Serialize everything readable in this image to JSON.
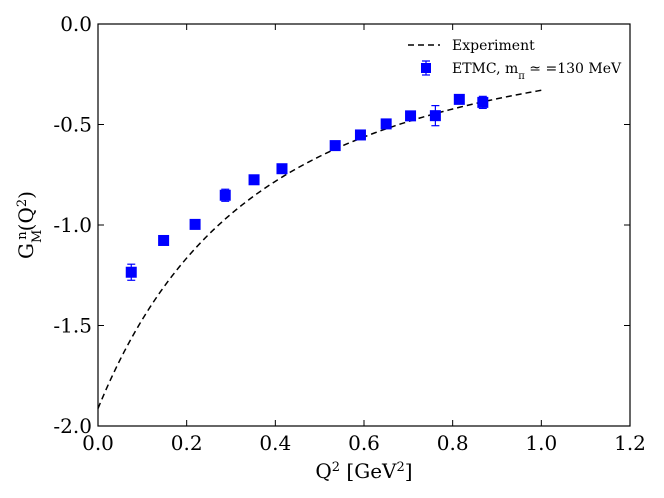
{
  "chart_data": {
    "type": "scatter",
    "title": "",
    "xlabel": {
      "main": "Q",
      "sup": "2",
      "mid": " [GeV",
      "sup2": "2",
      "end": "]"
    },
    "ylabel": {
      "main": "G",
      "sub": "M",
      "sup": "n",
      "end": "(Q",
      "sup2": "2",
      "close": ")"
    },
    "xlim": [
      0.0,
      1.2
    ],
    "ylim": [
      -2.0,
      0.0
    ],
    "xticks": [
      0.0,
      0.2,
      0.4,
      0.6,
      0.8,
      1.0,
      1.2
    ],
    "xtick_labels": [
      "0.0",
      "0.2",
      "0.4",
      "0.6",
      "0.8",
      "1.0",
      "1.2"
    ],
    "yticks": [
      0.0,
      -0.5,
      -1.0,
      -1.5,
      -2.0
    ],
    "ytick_labels": [
      "0.0",
      "-0.5",
      "-1.0",
      "-1.5",
      "-2.0"
    ],
    "legend": {
      "position": "top-right",
      "experiment_label": "Experiment",
      "etmc_label_main": "ETMC, m",
      "etmc_label_sub": "π",
      "etmc_label_rest": " ≃ =130 MeV"
    },
    "series": [
      {
        "name": "Experiment",
        "style": "dashed-line",
        "color": "#000000",
        "formula": "dipole: -1.913/(1+Q2/0.71)^2",
        "x_range": [
          0.0,
          1.0
        ]
      },
      {
        "name": "ETMC",
        "style": "square-markers-with-errorbars",
        "color": "#0000ff",
        "points": [
          {
            "x": 0.075,
            "y": -1.235,
            "err": 0.04
          },
          {
            "x": 0.148,
            "y": -1.077,
            "err": 0.02
          },
          {
            "x": 0.219,
            "y": -0.997,
            "err": 0.015
          },
          {
            "x": 0.287,
            "y": -0.852,
            "err": 0.03
          },
          {
            "x": 0.352,
            "y": -0.775,
            "err": 0.015
          },
          {
            "x": 0.415,
            "y": -0.72,
            "err": 0.015
          },
          {
            "x": 0.535,
            "y": -0.605,
            "err": 0.02
          },
          {
            "x": 0.592,
            "y": -0.552,
            "err": 0.015
          },
          {
            "x": 0.65,
            "y": -0.497,
            "err": 0.02
          },
          {
            "x": 0.705,
            "y": -0.457,
            "err": 0.015
          },
          {
            "x": 0.761,
            "y": -0.456,
            "err": 0.05
          },
          {
            "x": 0.815,
            "y": -0.375,
            "err": 0.02
          },
          {
            "x": 0.868,
            "y": -0.39,
            "err": 0.03
          }
        ]
      }
    ]
  }
}
